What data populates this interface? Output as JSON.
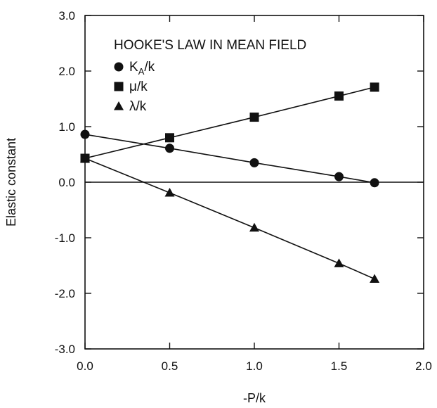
{
  "chart_data": {
    "type": "line",
    "xlabel": "-P/k",
    "ylabel": "Elastic constant",
    "xlim": [
      0,
      2
    ],
    "ylim": [
      -3,
      3
    ],
    "x_ticks": [
      0,
      0.5,
      1,
      1.5,
      2
    ],
    "x_tick_labels": [
      "0.0",
      "0.5",
      "1.0",
      "1.5",
      "2.0"
    ],
    "y_ticks": [
      -3,
      -2,
      -1,
      0,
      1,
      2,
      3
    ],
    "y_tick_labels": [
      "-3.0",
      "-2.0",
      "-1.0",
      "0.0",
      "1.0",
      "2.0",
      "3.0"
    ],
    "legend_title": "HOOKE'S LAW IN MEAN FIELD",
    "legend_position": "top-left",
    "grid": false,
    "series": [
      {
        "name": "K_A/k",
        "label_main": "K",
        "label_sub": "A",
        "label_tail": "/k",
        "marker": "circle",
        "points": [
          [
            0,
            0.86
          ],
          [
            0.5,
            0.61
          ],
          [
            1.0,
            0.35
          ],
          [
            1.5,
            0.1
          ],
          [
            1.71,
            -0.01
          ]
        ]
      },
      {
        "name": "μ/k",
        "label_main": "μ/k",
        "label_sub": "",
        "label_tail": "",
        "marker": "square",
        "points": [
          [
            0,
            0.43
          ],
          [
            0.5,
            0.8
          ],
          [
            1.0,
            1.17
          ],
          [
            1.5,
            1.55
          ],
          [
            1.71,
            1.71
          ]
        ]
      },
      {
        "name": "λ/k",
        "label_main": "λ/k",
        "label_sub": "",
        "label_tail": "",
        "marker": "triangle",
        "points": [
          [
            0,
            0.43
          ],
          [
            0.5,
            -0.19
          ],
          [
            1.0,
            -0.82
          ],
          [
            1.5,
            -1.46
          ],
          [
            1.71,
            -1.74
          ]
        ]
      }
    ],
    "zero_line": 0
  }
}
